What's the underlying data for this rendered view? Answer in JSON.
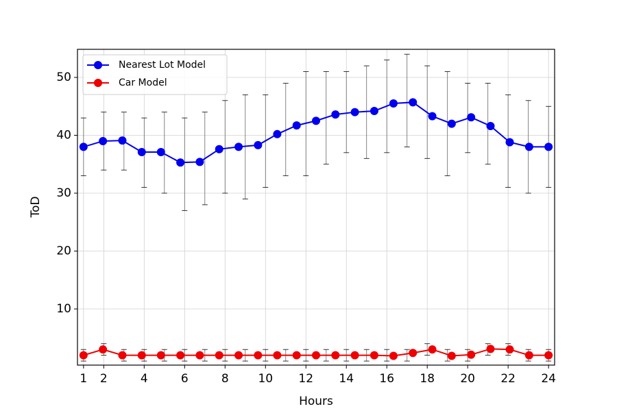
{
  "chart_data": {
    "type": "line",
    "xlabel": "Hours",
    "ylabel": "ToD",
    "x": [
      1,
      1.96,
      2.92,
      3.88,
      4.83,
      5.79,
      6.75,
      7.71,
      8.67,
      9.63,
      10.58,
      11.54,
      12.5,
      13.46,
      14.42,
      15.38,
      16.33,
      17.29,
      18.25,
      19.21,
      20.17,
      21.13,
      22.08,
      23.04,
      24
    ],
    "err_x": [
      1,
      2,
      3,
      4,
      5,
      6,
      7,
      8,
      9,
      10,
      11,
      12,
      13,
      14,
      15,
      16,
      17,
      18,
      19,
      20,
      21,
      22,
      23,
      24
    ],
    "series": [
      {
        "name": "Nearest Lot Model",
        "color": "#0000ee",
        "values": [
          38,
          39,
          39.1,
          37.1,
          37.1,
          35.3,
          35.4,
          37.6,
          38,
          38.3,
          40.2,
          41.7,
          42.5,
          43.6,
          44,
          44.2,
          45.5,
          45.7,
          43.3,
          42,
          43.1,
          41.6,
          38.8,
          38,
          38
        ],
        "err_lower": [
          33,
          34,
          34,
          31,
          30,
          27,
          28,
          30,
          29,
          31,
          33,
          33,
          35,
          37,
          36,
          37,
          38,
          36,
          33,
          37,
          35,
          31,
          30,
          31
        ],
        "err_upper": [
          43,
          44,
          44,
          43,
          44,
          43,
          44,
          46,
          47,
          47,
          49,
          51,
          51,
          51,
          52,
          53,
          54,
          52,
          51,
          49,
          49,
          47,
          46,
          45
        ]
      },
      {
        "name": "Car Model",
        "color": "#ee0000",
        "values": [
          2,
          3,
          2,
          2,
          2,
          2,
          2,
          2,
          2,
          2,
          2,
          2,
          2,
          2,
          2,
          2,
          1.9,
          2.4,
          3,
          1.9,
          2.1,
          3.1,
          3,
          2,
          2
        ],
        "err_lower": [
          1,
          2,
          1,
          1,
          1,
          1,
          1,
          1,
          1,
          1,
          1,
          1,
          1,
          1,
          1,
          1,
          1,
          2,
          1,
          1,
          2,
          2,
          1,
          1
        ],
        "err_upper": [
          3,
          4,
          3,
          3,
          3,
          3,
          3,
          3,
          3,
          3,
          3,
          3,
          3,
          3,
          3,
          3,
          3,
          4,
          3,
          3,
          4,
          4,
          3,
          3
        ]
      }
    ],
    "xlim": [
      0.7,
      24.3
    ],
    "ylim": [
      0.3,
      54.85
    ],
    "xticks": [
      1,
      2,
      4,
      6,
      8,
      10,
      12,
      14,
      16,
      18,
      20,
      22,
      24
    ],
    "yticks": [
      10,
      20,
      30,
      40,
      50
    ],
    "grid": true,
    "legend": "upper-left"
  }
}
